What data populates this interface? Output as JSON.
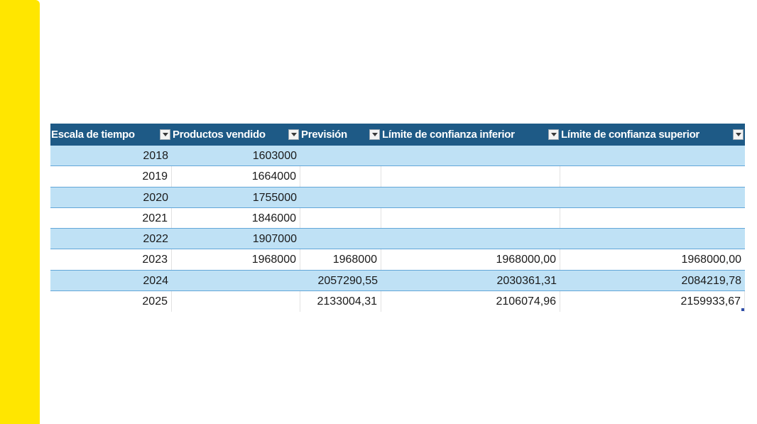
{
  "table": {
    "headers": [
      "Escala de tiempo",
      "Productos vendido",
      "Previsión",
      "Límite de confianza inferior",
      "Límite de confianza superior"
    ],
    "rows": [
      [
        "2018",
        "1603000",
        "",
        "",
        ""
      ],
      [
        "2019",
        "1664000",
        "",
        "",
        ""
      ],
      [
        "2020",
        "1755000",
        "",
        "",
        ""
      ],
      [
        "2021",
        "1846000",
        "",
        "",
        ""
      ],
      [
        "2022",
        "1907000",
        "",
        "",
        ""
      ],
      [
        "2023",
        "1968000",
        "1968000",
        "1968000,00",
        "1968000,00"
      ],
      [
        "2024",
        "",
        "2057290,55",
        "2030361,31",
        "2084219,78"
      ],
      [
        "2025",
        "",
        "2133004,31",
        "2106074,96",
        "2159933,67"
      ]
    ]
  },
  "colors": {
    "accent_bar": "#ffe600",
    "header_bg": "#1e5a86",
    "band_row": "#bfe1f5"
  },
  "icons": {
    "filter": "chevron-down-icon"
  }
}
